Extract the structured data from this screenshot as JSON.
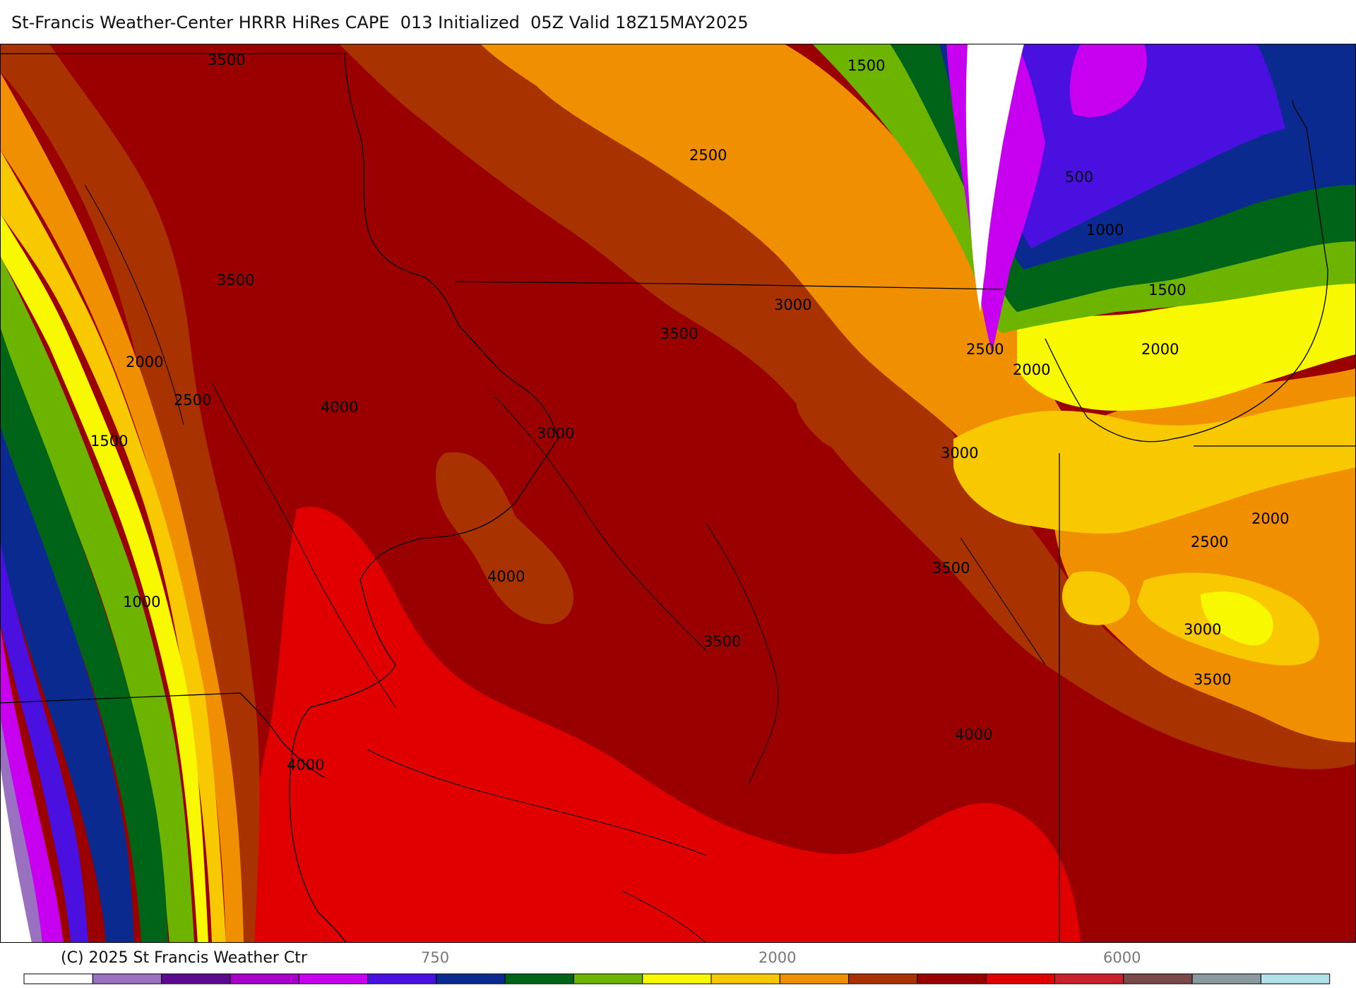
{
  "header": {
    "title": "St-Francis Weather-Center HRRR HiRes CAPE  013 Initialized  05Z Valid 18Z15MAY2025"
  },
  "colors": {
    "background": "#ffffff",
    "bins": [
      "#ffffff",
      "#9a71c0",
      "#5c0b90",
      "#a800c8",
      "#c800f0",
      "#4a10e0",
      "#0a2a90",
      "#006418",
      "#6cb400",
      "#f8f800",
      "#f8c800",
      "#f09000",
      "#a83200",
      "#9a0000",
      "#e00000",
      "#c8202c",
      "#7a4a4a",
      "#8a9aa0",
      "#b0e0e8"
    ],
    "contour_line": "#000000",
    "boundary_line": "#000000"
  },
  "contour_labels": [
    {
      "id": "c1",
      "text": "3500"
    },
    {
      "id": "c2",
      "text": "1500"
    },
    {
      "id": "c3",
      "text": "2500"
    },
    {
      "id": "c4",
      "text": "500"
    },
    {
      "id": "c5",
      "text": "1000"
    },
    {
      "id": "c6",
      "text": "1500"
    },
    {
      "id": "c7",
      "text": "3500"
    },
    {
      "id": "c8",
      "text": "3000"
    },
    {
      "id": "c9",
      "text": "3500"
    },
    {
      "id": "c10",
      "text": "2500"
    },
    {
      "id": "c11",
      "text": "2000"
    },
    {
      "id": "c12",
      "text": "2000"
    },
    {
      "id": "c13",
      "text": "2000"
    },
    {
      "id": "c14",
      "text": "2500"
    },
    {
      "id": "c15",
      "text": "4000"
    },
    {
      "id": "c16",
      "text": "3000"
    },
    {
      "id": "c17",
      "text": "1500"
    },
    {
      "id": "c18",
      "text": "3000"
    },
    {
      "id": "c19",
      "text": "2000"
    },
    {
      "id": "c20",
      "text": "2500"
    },
    {
      "id": "c21",
      "text": "4000"
    },
    {
      "id": "c22",
      "text": "3500"
    },
    {
      "id": "c23",
      "text": "1000"
    },
    {
      "id": "c24",
      "text": "3500"
    },
    {
      "id": "c25",
      "text": "3000"
    },
    {
      "id": "c26",
      "text": "3500"
    },
    {
      "id": "c27",
      "text": "4000"
    },
    {
      "id": "c28",
      "text": "4000"
    }
  ],
  "legend": {
    "copyright": "(C) 2025 St Francis Weather Ctr",
    "tick_labels": [
      "750",
      "2000",
      "6000"
    ]
  }
}
